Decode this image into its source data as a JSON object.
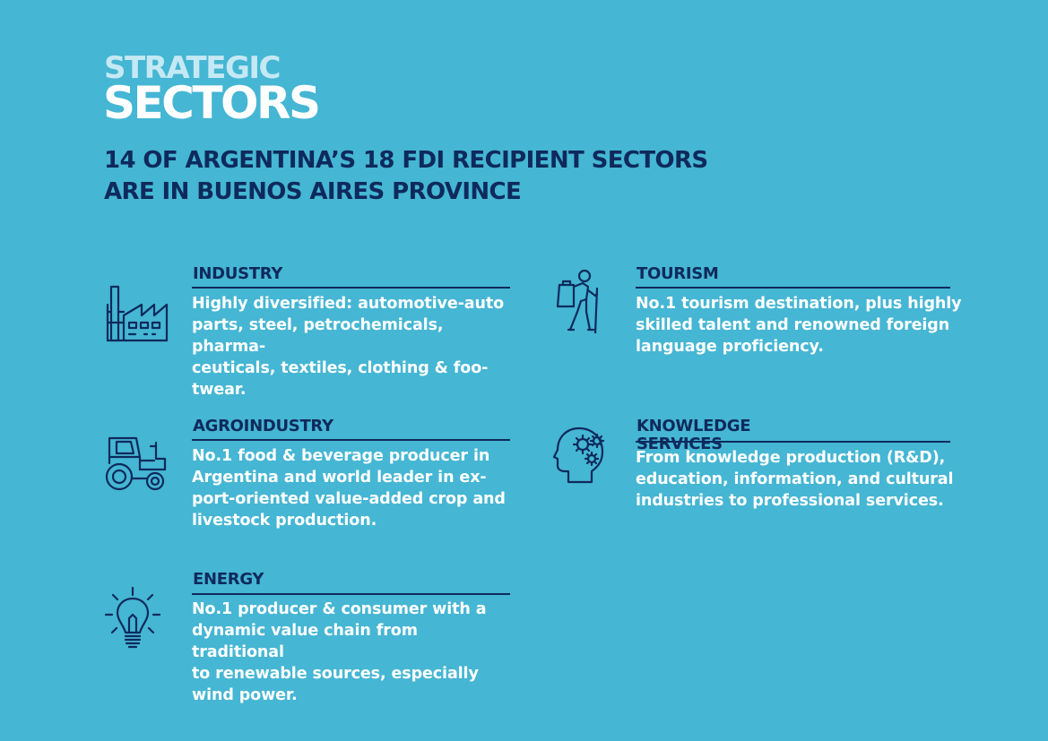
{
  "header": {
    "kicker": "STRATEGIC",
    "title": "SECTORS",
    "subtitle_line1": "14 OF ARGENTINA’S 18 FDI RECIPIENT SECTORS",
    "subtitle_line2": "ARE IN BUENOS AIRES PROVINCE"
  },
  "colors": {
    "background": "#45b6d3",
    "navy": "#0e2a5c",
    "white": "#ffffff",
    "kicker": "#c5e9f4"
  },
  "sectors": [
    {
      "icon": "factory-icon",
      "name": "INDUSTRY",
      "lines": [
        "Highly diversified: automotive-auto",
        "parts, steel, petrochemicals, pharma-",
        "ceuticals, textiles, clothing & foo-",
        "twear."
      ]
    },
    {
      "icon": "tractor-icon",
      "name": "AGROINDUSTRY",
      "lines": [
        "No.1 food & beverage producer in",
        "Argentina and world leader in ex-",
        "port-oriented value-added crop and",
        "livestock production."
      ]
    },
    {
      "icon": "lightbulb-icon",
      "name": "ENERGY",
      "lines": [
        "No.1 producer & consumer with a",
        "dynamic value chain from traditional",
        "to renewable sources, especially",
        "wind power."
      ]
    },
    {
      "icon": "hiker-icon",
      "name": "TOURISM",
      "lines": [
        "No.1 tourism destination, plus highly",
        "skilled talent and renowned foreign",
        "language proficiency."
      ]
    },
    {
      "icon": "head-gears-icon",
      "name": "KNOWLEDGE SERVICES",
      "lines": [
        "From knowledge production (R&D),",
        "education, information, and cultural",
        "industries to professional services."
      ]
    }
  ]
}
